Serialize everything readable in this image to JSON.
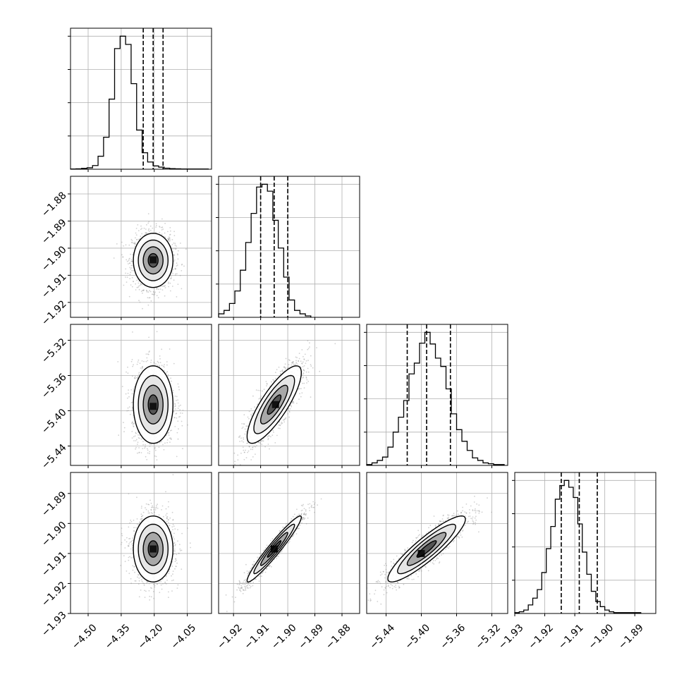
{
  "chart_data": {
    "type": "corner",
    "grid": true,
    "parameters": [
      {
        "ticks": [
          "−4.50",
          "−4.35",
          "−4.20",
          "−4.05"
        ],
        "tick_values": [
          -4.5,
          -4.35,
          -4.2,
          -4.05
        ],
        "range": [
          -4.58,
          -3.94
        ]
      },
      {
        "ticks": [
          "−1.92",
          "−1.91",
          "−1.90",
          "−1.89",
          "−1.88"
        ],
        "tick_values": [
          -1.92,
          -1.91,
          -1.9,
          -1.89,
          -1.88
        ],
        "range": [
          -1.9255,
          -1.8735
        ]
      },
      {
        "ticks": [
          "−5.44",
          "−5.40",
          "−5.36",
          "−5.32"
        ],
        "tick_values": [
          -5.44,
          -5.4,
          -5.36,
          -5.32
        ],
        "range": [
          -5.462,
          -5.302
        ]
      },
      {
        "ticks": [
          "−1.93",
          "−1.92",
          "−1.91",
          "−1.90",
          "−1.89"
        ],
        "tick_values": [
          -1.93,
          -1.92,
          -1.91,
          -1.9,
          -1.89
        ],
        "range": [
          -1.93,
          -1.883
        ]
      }
    ],
    "row_tick_labels": [
      {
        "ticks": [
          "−1.88",
          "−1.89",
          "−1.90",
          "−1.91",
          "−1.92"
        ],
        "tick_values": [
          -1.88,
          -1.89,
          -1.9,
          -1.91,
          -1.92
        ]
      },
      {
        "ticks": [
          "−5.32",
          "−5.36",
          "−5.40",
          "−5.44"
        ],
        "tick_values": [
          -5.32,
          -5.36,
          -5.4,
          -5.44
        ]
      },
      {
        "ticks": [
          "−1.89",
          "−1.90",
          "−1.91",
          "−1.92",
          "−1.93"
        ],
        "tick_values": [
          -1.89,
          -1.9,
          -1.91,
          -1.92,
          -1.93
        ]
      }
    ],
    "marginals": [
      {
        "quantiles": [
          -4.25,
          -4.205,
          -4.16
        ],
        "edges": [
          -4.58,
          -4.555,
          -4.53,
          -4.505,
          -4.48,
          -4.455,
          -4.43,
          -4.405,
          -4.38,
          -4.355,
          -4.33,
          -4.305,
          -4.28,
          -4.255,
          -4.23,
          -4.205,
          -4.18,
          -4.155,
          -4.13,
          -4.105,
          -4.08,
          -4.055,
          -4.03,
          -4.005,
          -3.98,
          -3.955
        ],
        "counts": [
          1,
          2,
          4,
          7,
          18,
          63,
          155,
          340,
          585,
          645,
          605,
          415,
          190,
          80,
          35,
          16,
          10,
          5,
          3,
          2,
          1,
          1,
          1,
          1,
          1
        ]
      },
      {
        "quantiles": [
          -1.91,
          -1.905,
          -1.9
        ],
        "edges": [
          -1.9255,
          -1.9235,
          -1.9215,
          -1.9195,
          -1.9175,
          -1.9155,
          -1.9135,
          -1.9115,
          -1.9095,
          -1.9075,
          -1.9055,
          -1.9035,
          -1.9015,
          -1.8995,
          -1.8975,
          -1.8955,
          -1.8935,
          -1.8915
        ],
        "counts": [
          5,
          10,
          20,
          38,
          68,
          108,
          150,
          188,
          192,
          182,
          140,
          100,
          58,
          25,
          10,
          5,
          2
        ]
      },
      {
        "quantiles": [
          -5.416,
          -5.394,
          -5.367
        ],
        "edges": [
          -5.462,
          -5.456,
          -5.45,
          -5.444,
          -5.438,
          -5.432,
          -5.426,
          -5.42,
          -5.414,
          -5.408,
          -5.402,
          -5.396,
          -5.39,
          -5.384,
          -5.378,
          -5.372,
          -5.366,
          -5.36,
          -5.354,
          -5.348,
          -5.342,
          -5.336,
          -5.33,
          -5.324,
          -5.318,
          -5.312,
          -5.306
        ],
        "counts": [
          1,
          3,
          6,
          10,
          22,
          40,
          58,
          78,
          110,
          123,
          147,
          160,
          146,
          129,
          119,
          92,
          62,
          43,
          29,
          18,
          9,
          6,
          3,
          2,
          1,
          1
        ]
      },
      {
        "quantiles": [
          -1.9145,
          -1.9085,
          -1.9025
        ],
        "edges": [
          -1.93,
          -1.9285,
          -1.927,
          -1.9255,
          -1.924,
          -1.9225,
          -1.921,
          -1.9195,
          -1.918,
          -1.9165,
          -1.915,
          -1.9135,
          -1.912,
          -1.9105,
          -1.909,
          -1.9075,
          -1.906,
          -1.9045,
          -1.903,
          -1.9015,
          -1.9,
          -1.8985,
          -1.897,
          -1.8955,
          -1.894,
          -1.8925,
          -1.891,
          -1.8895,
          -1.888
        ],
        "counts": [
          1,
          2,
          4,
          10,
          18,
          28,
          48,
          76,
          102,
          134,
          150,
          156,
          148,
          136,
          105,
          72,
          46,
          26,
          14,
          8,
          4,
          2,
          1,
          1,
          1,
          1,
          1,
          1
        ]
      }
    ],
    "joints": [
      {
        "row": 1,
        "col": 0,
        "mean": [
          -4.205,
          -1.9045
        ],
        "sd": [
          0.045,
          0.005
        ],
        "rho": 0.0,
        "peak": [
          -4.205,
          -1.9043
        ]
      },
      {
        "row": 2,
        "col": 0,
        "mean": [
          -4.205,
          -5.393
        ],
        "sd": [
          0.045,
          0.022
        ],
        "rho": 0.0,
        "peak": [
          -4.205,
          -5.395
        ]
      },
      {
        "row": 2,
        "col": 1,
        "mean": [
          -1.905,
          -5.393
        ],
        "sd": [
          0.005,
          0.022
        ],
        "rho": 0.82,
        "peak": [
          -1.9045,
          -5.393
        ]
      },
      {
        "row": 3,
        "col": 0,
        "mean": [
          -4.205,
          -1.9085
        ],
        "sd": [
          0.045,
          0.0055
        ],
        "rho": 0.0,
        "peak": [
          -4.205,
          -1.9085
        ]
      },
      {
        "row": 3,
        "col": 1,
        "mean": [
          -1.905,
          -1.9085
        ],
        "sd": [
          0.005,
          0.0055
        ],
        "rho": 0.96,
        "peak": [
          -1.905,
          -1.9085
        ]
      },
      {
        "row": 3,
        "col": 2,
        "mean": [
          -5.394,
          -1.9085
        ],
        "sd": [
          0.022,
          0.0055
        ],
        "rho": 0.9,
        "peak": [
          -5.4,
          -1.91
        ]
      }
    ]
  }
}
